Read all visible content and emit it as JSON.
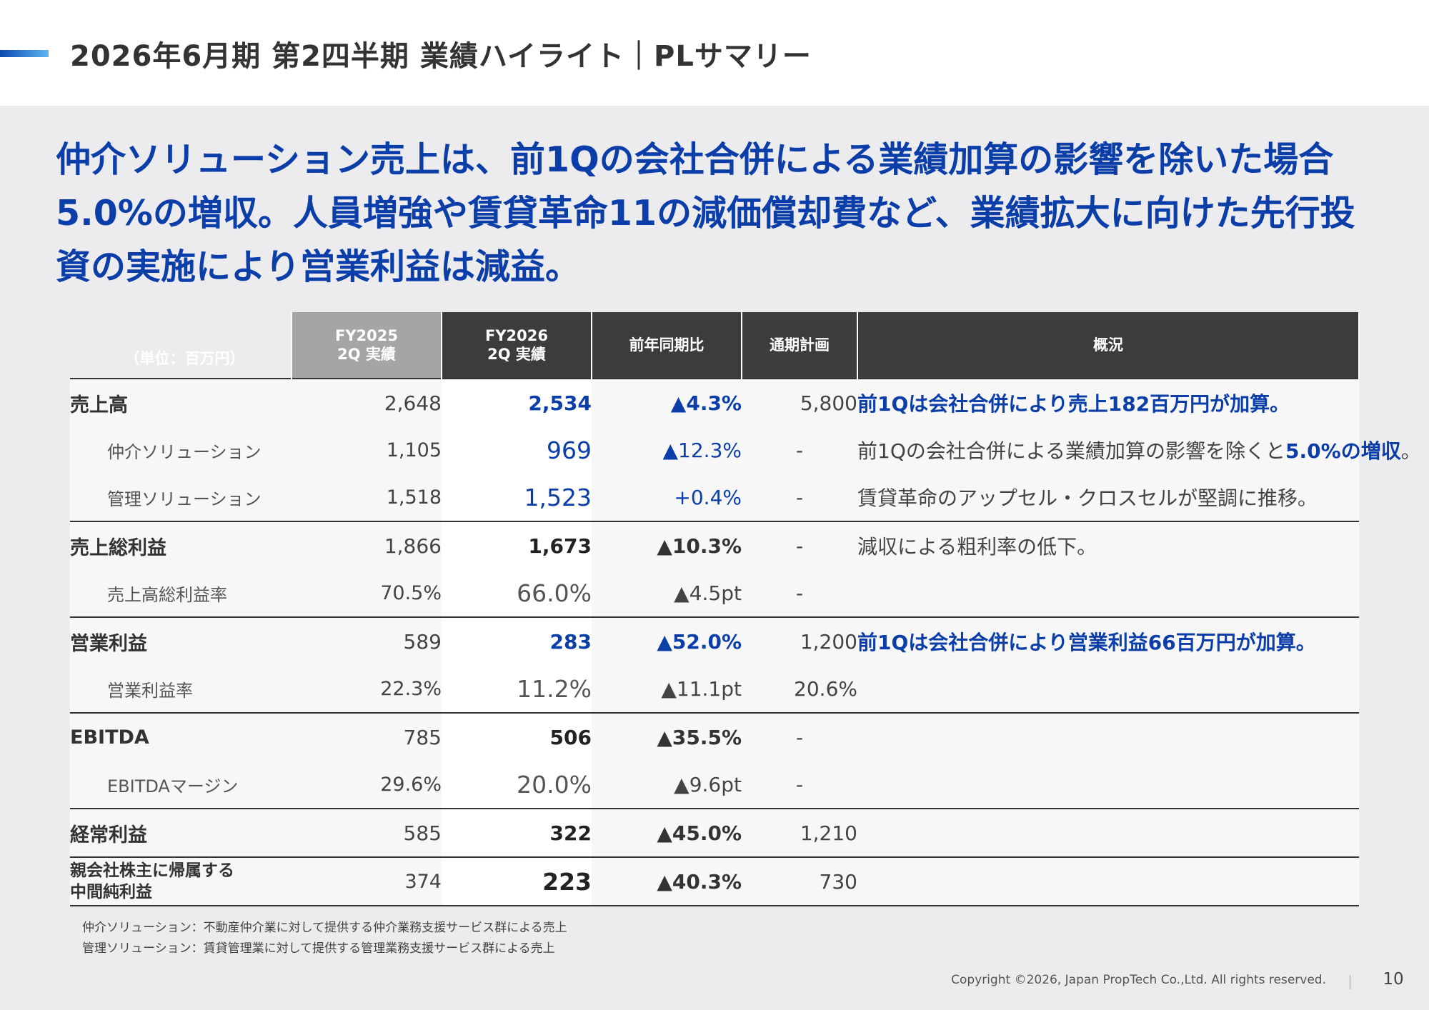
{
  "header": {
    "title": "2026年6月期 第2四半期 業績ハイライト｜PLサマリー"
  },
  "headline": "仲介ソリューション売上は、前1Qの会社合併による業績加算の影響を除いた場合5.0%の増収。人員増強や賃貸革命11の減価償却費など、業績拡大に向けた先行投資の実施により営業利益は減益。",
  "table": {
    "unit_label": "（単位：百万円）",
    "columns": {
      "fy2025_line1": "FY2025",
      "fy2025_line2": "2Q 実績",
      "fy2026_line1": "FY2026",
      "fy2026_line2": "2Q 実績",
      "yoy": "前年同期比",
      "plan": "通期計画",
      "summary": "概況"
    },
    "rows": [
      {
        "label": "売上高",
        "fy2025": "2,648",
        "fy2026": "2,534",
        "yoy": "▲4.3%",
        "plan": "5,800",
        "note": "前1Qは会社合併により売上182百万円が加算。"
      },
      {
        "label": "仲介ソリューション",
        "fy2025": "1,105",
        "fy2026": "969",
        "yoy": "▲12.3%",
        "plan": "-",
        "note_pre": "前1Qの会社合併による業績加算の影響を除くと",
        "note_hl": "5.0%の増収",
        "note_post": "。"
      },
      {
        "label": "管理ソリューション",
        "fy2025": "1,518",
        "fy2026": "1,523",
        "yoy": "+0.4%",
        "plan": "-",
        "note": "賃貸革命のアップセル・クロスセルが堅調に推移。"
      },
      {
        "label": "売上総利益",
        "fy2025": "1,866",
        "fy2026": "1,673",
        "yoy": "▲10.3%",
        "plan": "-",
        "note": "減収による粗利率の低下。"
      },
      {
        "label": "売上高総利益率",
        "fy2025": "70.5%",
        "fy2026": "66.0%",
        "yoy": "▲4.5pt",
        "plan": "-",
        "note": ""
      },
      {
        "label": "営業利益",
        "fy2025": "589",
        "fy2026": "283",
        "yoy": "▲52.0%",
        "plan": "1,200",
        "note": "前1Qは会社合併により営業利益66百万円が加算。"
      },
      {
        "label": "営業利益率",
        "fy2025": "22.3%",
        "fy2026": "11.2%",
        "yoy": "▲11.1pt",
        "plan": "20.6%",
        "note": ""
      },
      {
        "label": "EBITDA",
        "fy2025": "785",
        "fy2026": "506",
        "yoy": "▲35.5%",
        "plan": "-",
        "note": ""
      },
      {
        "label": "EBITDAマージン",
        "fy2025": "29.6%",
        "fy2026": "20.0%",
        "yoy": "▲9.6pt",
        "plan": "-",
        "note": ""
      },
      {
        "label": "経常利益",
        "fy2025": "585",
        "fy2026": "322",
        "yoy": "▲45.0%",
        "plan": "1,210",
        "note": ""
      },
      {
        "label_line1": "親会社株主に帰属する",
        "label_line2": "中間純利益",
        "fy2025": "374",
        "fy2026": "223",
        "yoy": "▲40.3%",
        "plan": "730",
        "note": ""
      }
    ]
  },
  "footnotes": [
    "仲介ソリューション：不動産仲介業に対して提供する仲介業務支援サービス群による売上",
    "管理ソリューション：賃貸管理業に対して提供する管理業務支援サービス群による売上"
  ],
  "footer": {
    "copyright": "Copyright ©2026, Japan PropTech Co.,Ltd. All rights reserved.",
    "page_number": "10"
  },
  "colors": {
    "accent_blue": "#0b3ea8",
    "header_dark": "#3c3c3c",
    "header_gray": "#a5a5a5"
  }
}
